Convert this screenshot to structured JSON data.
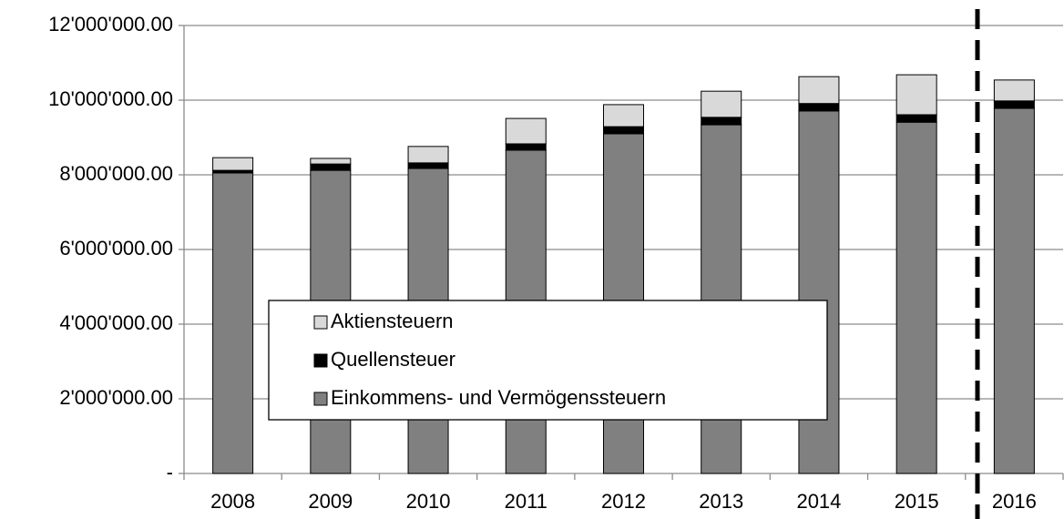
{
  "chart_data": {
    "type": "stacked_bar",
    "categories": [
      "2008",
      "2009",
      "2010",
      "2011",
      "2012",
      "2013",
      "2014",
      "2015",
      "2016"
    ],
    "series": [
      {
        "name": "Einkommens- und Vermögenssteuern",
        "color": "#808080",
        "values": [
          8050000,
          8120000,
          8170000,
          8660000,
          9100000,
          9340000,
          9710000,
          9410000,
          9780000
        ]
      },
      {
        "name": "Quellensteuer",
        "color": "#000000",
        "values": [
          70000,
          170000,
          150000,
          170000,
          190000,
          200000,
          200000,
          200000,
          200000
        ]
      },
      {
        "name": "Aktiensteuern",
        "color": "#d9d9d9",
        "values": [
          340000,
          150000,
          440000,
          680000,
          590000,
          700000,
          720000,
          1070000,
          560000
        ]
      }
    ],
    "ylim": [
      0,
      12000000
    ],
    "yticks": [
      {
        "value": 0,
        "label": "-"
      },
      {
        "value": 2000000,
        "label": "2'000'000.00"
      },
      {
        "value": 4000000,
        "label": "4'000'000.00"
      },
      {
        "value": 6000000,
        "label": "6'000'000.00"
      },
      {
        "value": 8000000,
        "label": "8'000'000.00"
      },
      {
        "value": 10000000,
        "label": "10'000'000.00"
      },
      {
        "value": 12000000,
        "label": "12'000'000.00"
      }
    ],
    "grid": true,
    "legend_position": "lower center"
  }
}
